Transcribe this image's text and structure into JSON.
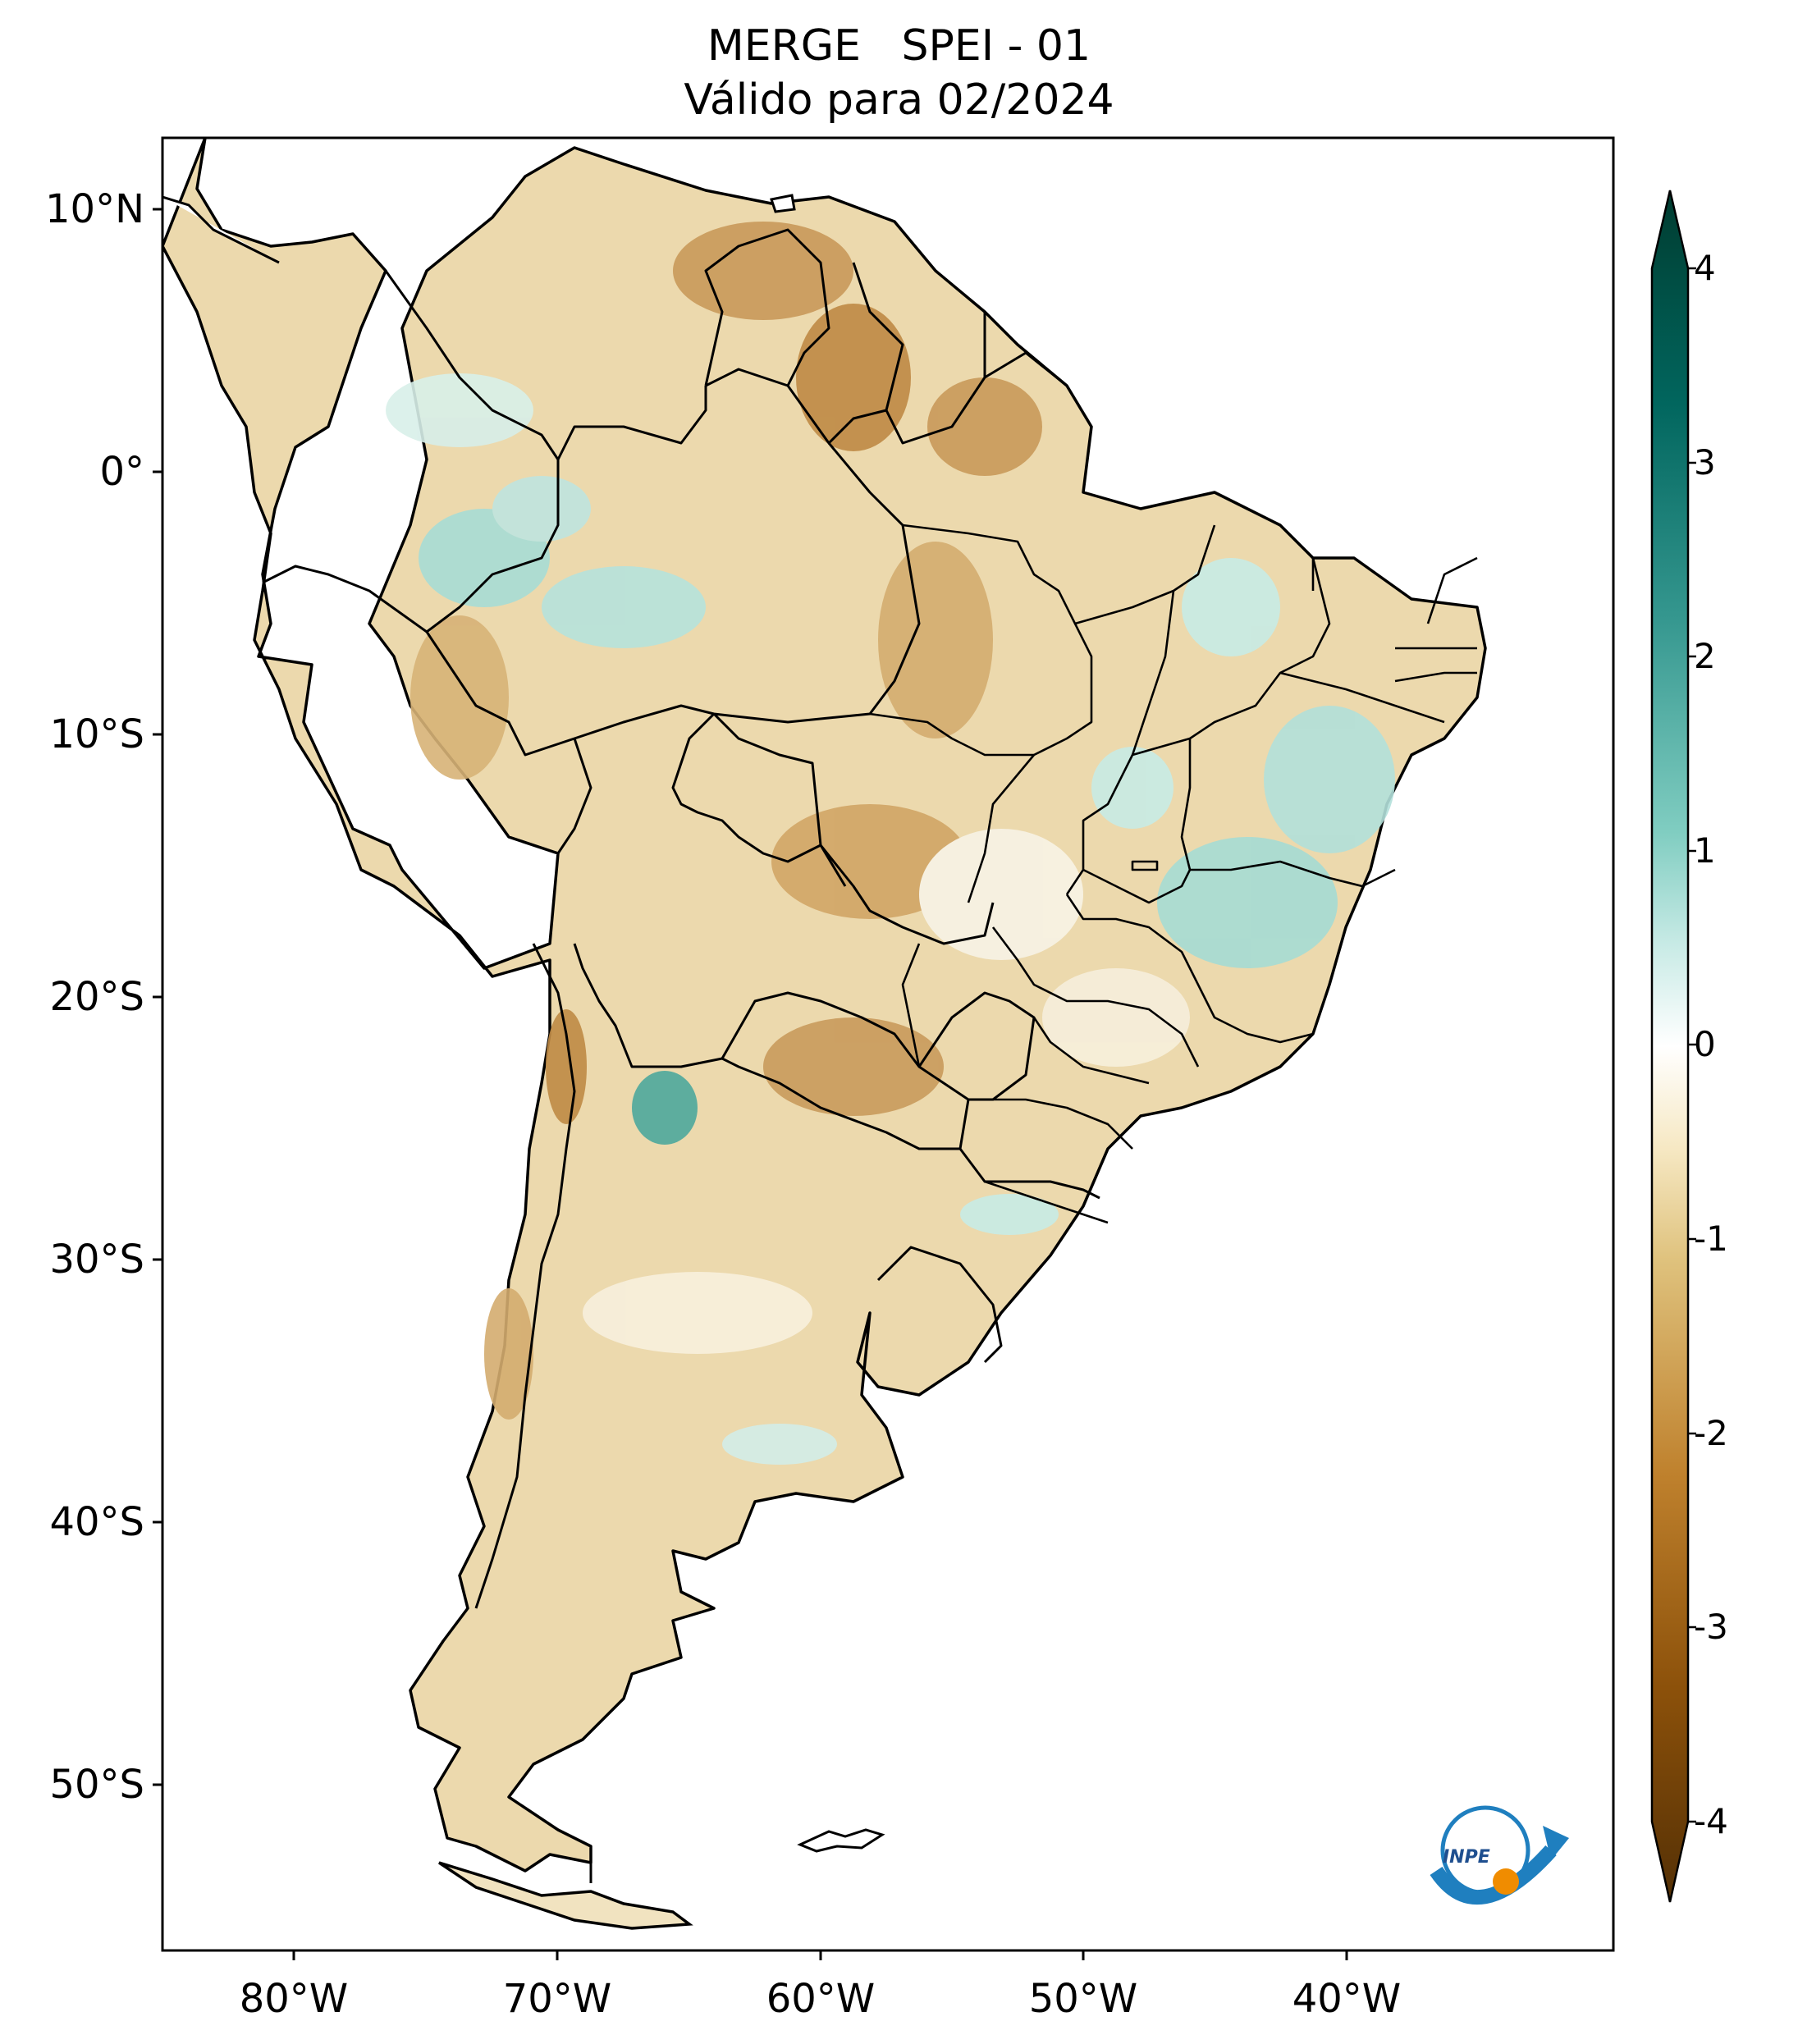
{
  "title": {
    "line1": "MERGE   SPEI - 01",
    "line2": "Válido para 02/2024"
  },
  "map": {
    "lat_ticks": [
      "10°N",
      "0°",
      "10°S",
      "20°S",
      "30°S",
      "40°S",
      "50°S"
    ],
    "lon_ticks": [
      "80°W",
      "70°W",
      "60°W",
      "50°W",
      "40°W"
    ],
    "extent": {
      "lon": [
        -85,
        -30
      ],
      "lat": [
        -56,
        13
      ]
    }
  },
  "colorbar": {
    "labels": [
      "4",
      "3",
      "2",
      "1",
      "0",
      "-1",
      "-2",
      "-3",
      "-4"
    ],
    "range": [
      -4,
      4
    ],
    "extend": "both",
    "colormap": "BrBG",
    "colors": {
      "neg4": "#543005",
      "neg3": "#8c510a",
      "neg2": "#bf812d",
      "neg1": "#dfc27d",
      "neg05": "#f6e8c3",
      "zero": "#ffffff",
      "pos05": "#c7eae5",
      "pos1": "#80cdc1",
      "pos2": "#35978f",
      "pos3": "#01665e",
      "pos4": "#003c30"
    }
  },
  "logo": {
    "text": "INPE",
    "icon": "inpe-logo-icon"
  }
}
